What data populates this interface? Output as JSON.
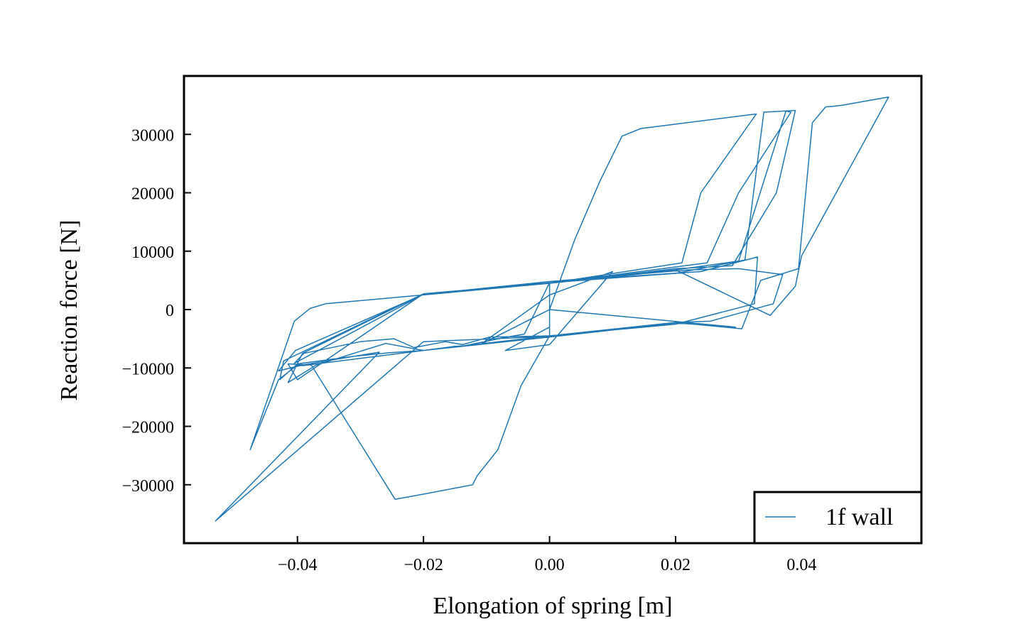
{
  "chart_data": {
    "type": "line",
    "title": "",
    "xlabel": "Elongation of spring [m]",
    "ylabel": "Reaction force [N]",
    "xlim": [
      -0.058,
      0.059
    ],
    "ylim": [
      -40000,
      40000
    ],
    "x_ticks": [
      -0.04,
      -0.02,
      0.0,
      0.02,
      0.04
    ],
    "x_tick_labels": [
      "−0.04",
      "−0.02",
      "0.00",
      "0.02",
      "0.04"
    ],
    "y_ticks": [
      -30000,
      -20000,
      -10000,
      0,
      10000,
      20000,
      30000
    ],
    "y_tick_labels": [
      "−30000",
      "−20000",
      "−10000",
      "0",
      "10000",
      "20000",
      "30000"
    ],
    "grid": false,
    "legend_position": "lower-right",
    "series": [
      {
        "name": "1f wall",
        "color": "#1f77b4",
        "x": [
          0.0,
          0.004,
          0.008,
          0.0115,
          0.0145,
          0.0328,
          0.024,
          0.021,
          0.0,
          -0.02,
          -0.0355,
          -0.038,
          -0.0405,
          -0.0475,
          -0.043,
          -0.04,
          -0.0392,
          -0.02,
          0.0,
          0.02,
          0.0255,
          0.0355,
          0.037,
          0.03,
          0.022,
          0.0,
          -0.02,
          -0.0405,
          -0.039,
          -0.03,
          -0.0247,
          -0.0215,
          -0.0165,
          -0.0138,
          -0.0095,
          0.0,
          0.0,
          0.018,
          0.03,
          0.0375,
          0.0383,
          0.03,
          0.025,
          0.0,
          -0.02,
          -0.04,
          -0.0415,
          -0.0378,
          -0.0245,
          -0.0195,
          -0.0122,
          -0.0115,
          -0.0082,
          -0.0045,
          0.0,
          0.02,
          0.0325,
          0.033,
          0.024,
          0.0,
          -0.02,
          -0.0403,
          -0.043,
          -0.0392,
          -0.031,
          -0.0255,
          -0.02,
          -0.015,
          -0.0135,
          -0.0072,
          -0.004,
          0.0,
          0.02,
          0.031,
          0.034,
          0.039,
          0.036,
          0.029,
          0.02,
          0.0,
          -0.02,
          -0.0422,
          -0.0428,
          -0.04,
          -0.031,
          -0.027,
          -0.053,
          -0.02,
          0.0,
          0.02,
          0.0305,
          0.0335,
          0.0395,
          0.0417,
          0.0438,
          0.045,
          0.0465,
          0.0538,
          0.04,
          0.039,
          0.035,
          0.02,
          0.0,
          -0.02,
          -0.0392,
          -0.0415,
          -0.037,
          -0.026,
          -0.02,
          0.0,
          0.02,
          0.0295,
          0.0,
          -0.011,
          0.0,
          0.01,
          0.0,
          -0.007,
          0.0
        ],
        "y": [
          0,
          12000,
          22000,
          29700,
          31000,
          33500,
          20000,
          8000,
          4500,
          2500,
          1000,
          200,
          -2000,
          -24000,
          -12000,
          -9500,
          -9600,
          -7000,
          -4500,
          -2200,
          -2000,
          1000,
          6000,
          7000,
          6800,
          4800,
          2600,
          -9200,
          -7500,
          -5500,
          -5000,
          -6500,
          -5500,
          -6000,
          -4700,
          -4500,
          4500,
          6500,
          8300,
          34000,
          33800,
          20000,
          8000,
          4500,
          2700,
          -12000,
          -9300,
          -9500,
          -32500,
          -31500,
          -30000,
          -28500,
          -24000,
          -13000,
          -4500,
          -2500,
          1000,
          9000,
          6500,
          4800,
          2600,
          -7000,
          -10500,
          -9500,
          -8000,
          -7400,
          -7000,
          -6300,
          -6200,
          -4800,
          -4200,
          4600,
          6200,
          8500,
          33800,
          34100,
          20000,
          7500,
          7000,
          4500,
          2700,
          -8800,
          -12000,
          -9300,
          -8000,
          -7300,
          -36200,
          -5500,
          -4600,
          -2200,
          -3300,
          5000,
          7000,
          32000,
          34700,
          34800,
          35000,
          36400,
          9200,
          4000,
          -1000,
          6800,
          4600,
          2700,
          -7500,
          -12500,
          -9500,
          -5800,
          -7000,
          -4700,
          -2300,
          -3000,
          0,
          -6000,
          2500,
          6500,
          -6000,
          -7000,
          -3000
        ]
      }
    ]
  }
}
